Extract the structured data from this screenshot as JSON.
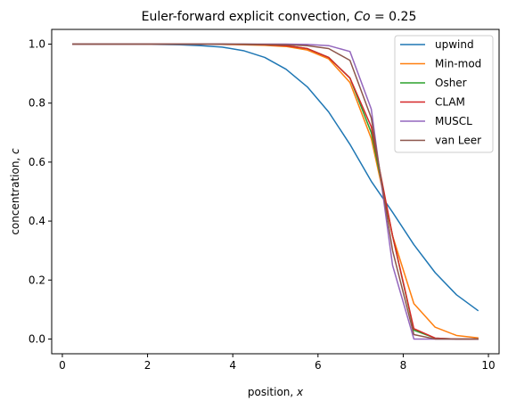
{
  "chart_data": {
    "type": "line",
    "title": "Euler-forward explicit convection, Co =  0.25",
    "title_parts": {
      "prefix": "Euler-forward explicit convection, ",
      "math_var": "Co",
      "suffix": " =  0.25"
    },
    "xlabel": "position, x",
    "xlabel_parts": {
      "prefix": "position, ",
      "math_var": "x"
    },
    "ylabel": "concentration, c",
    "ylabel_parts": {
      "prefix": "concentration, ",
      "math_var": "c"
    },
    "xlim": [
      -0.25,
      10.25
    ],
    "ylim": [
      -0.05,
      1.05
    ],
    "xticks": [
      0,
      2,
      4,
      6,
      8,
      10
    ],
    "xtick_labels": [
      "0",
      "2",
      "4",
      "6",
      "8",
      "10"
    ],
    "yticks": [
      0.0,
      0.2,
      0.4,
      0.6,
      0.8,
      1.0
    ],
    "ytick_labels": [
      "0.0",
      "0.2",
      "0.4",
      "0.6",
      "0.8",
      "1.0"
    ],
    "grid": false,
    "legend_position": "top-right",
    "x": [
      0.25,
      0.75,
      1.25,
      1.75,
      2.25,
      2.75,
      3.25,
      3.75,
      4.25,
      4.75,
      5.25,
      5.75,
      6.25,
      6.75,
      7.25,
      7.75,
      8.25,
      8.75,
      9.25,
      9.75
    ],
    "series": [
      {
        "name": "upwind",
        "color": "#1f77b4",
        "values": [
          1.0,
          1.0,
          1.0,
          1.0,
          0.999,
          0.998,
          0.995,
          0.99,
          0.978,
          0.955,
          0.915,
          0.855,
          0.77,
          0.66,
          0.535,
          0.43,
          0.32,
          0.225,
          0.15,
          0.097
        ]
      },
      {
        "name": "Min-mod",
        "color": "#ff7f0e",
        "values": [
          1.0,
          1.0,
          1.0,
          1.0,
          1.0,
          1.0,
          1.0,
          0.999,
          0.998,
          0.996,
          0.992,
          0.98,
          0.95,
          0.87,
          0.68,
          0.35,
          0.12,
          0.04,
          0.012,
          0.004
        ]
      },
      {
        "name": "Osher",
        "color": "#2ca02c",
        "values": [
          1.0,
          1.0,
          1.0,
          1.0,
          1.0,
          1.0,
          1.0,
          1.0,
          0.999,
          0.998,
          0.995,
          0.985,
          0.955,
          0.885,
          0.7,
          0.35,
          0.03,
          0.003,
          0.0,
          0.0
        ]
      },
      {
        "name": "CLAM",
        "color": "#d62728",
        "values": [
          1.0,
          1.0,
          1.0,
          1.0,
          1.0,
          1.0,
          1.0,
          1.0,
          0.999,
          0.998,
          0.995,
          0.985,
          0.955,
          0.885,
          0.72,
          0.35,
          0.035,
          0.003,
          0.0,
          0.0
        ]
      },
      {
        "name": "MUSCL",
        "color": "#9467bd",
        "values": [
          1.0,
          1.0,
          1.0,
          1.0,
          1.0,
          1.0,
          1.0,
          1.0,
          1.0,
          1.0,
          1.0,
          0.999,
          0.995,
          0.975,
          0.78,
          0.25,
          0.0,
          0.0,
          0.0,
          0.0
        ]
      },
      {
        "name": "van Leer",
        "color": "#8c564b",
        "values": [
          1.0,
          1.0,
          1.0,
          1.0,
          1.0,
          1.0,
          1.0,
          1.0,
          1.0,
          0.999,
          0.998,
          0.995,
          0.985,
          0.945,
          0.75,
          0.3,
          0.015,
          0.0,
          0.0,
          0.0
        ]
      }
    ]
  }
}
